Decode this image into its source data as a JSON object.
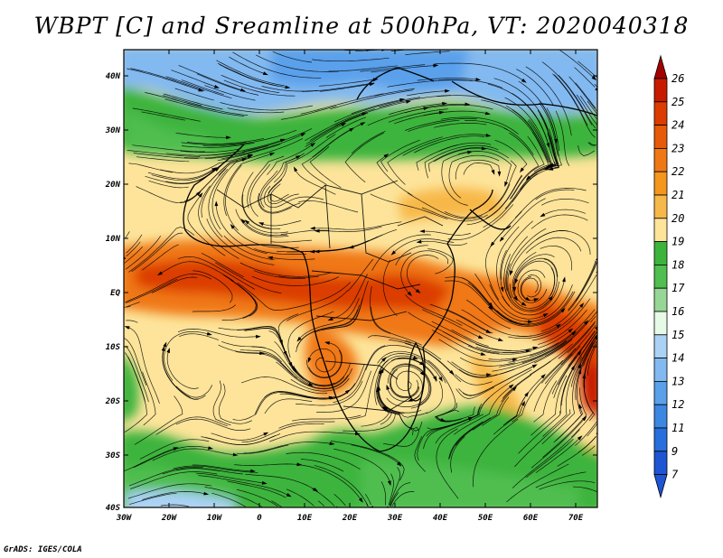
{
  "title": "WBPT [C] and Sreamline at 500hPa, VT: 2020040318",
  "credit": "GrADS: IGES/COLA",
  "lon_labels": [
    "30W",
    "20W",
    "10W",
    "0",
    "10E",
    "20E",
    "30E",
    "40E",
    "50E",
    "60E",
    "70E"
  ],
  "lat_labels": [
    "40N",
    "30N",
    "20N",
    "10N",
    "EQ",
    "10S",
    "20S",
    "30S",
    "40S"
  ],
  "colorbar": {
    "levels": [
      "26",
      "25",
      "24",
      "23",
      "22",
      "21",
      "20",
      "19",
      "18",
      "17",
      "16",
      "15",
      "14",
      "13",
      "12",
      "11",
      "9",
      "7"
    ],
    "colors": [
      "#a50000",
      "#c81a00",
      "#dc3c00",
      "#e65a0a",
      "#f07814",
      "#f5961e",
      "#f7b84a",
      "#fde49a",
      "#3cb43c",
      "#50be50",
      "#96d796",
      "#e6fae6",
      "#aad2f5",
      "#82b9f0",
      "#5aa0eb",
      "#3c87e1",
      "#286edc",
      "#1e55d2"
    ],
    "top_color": "#a50000",
    "bottom_color": "#1e55d2"
  },
  "field_colors": {
    "blue_cold": "#82b9f0",
    "blue_mid": "#aad2f5",
    "green_dark": "#3cb43c",
    "green_light": "#96d796",
    "tan": "#fde49a",
    "orange_light": "#f7b84a",
    "orange": "#f07814",
    "red_orange": "#dc3c00"
  }
}
